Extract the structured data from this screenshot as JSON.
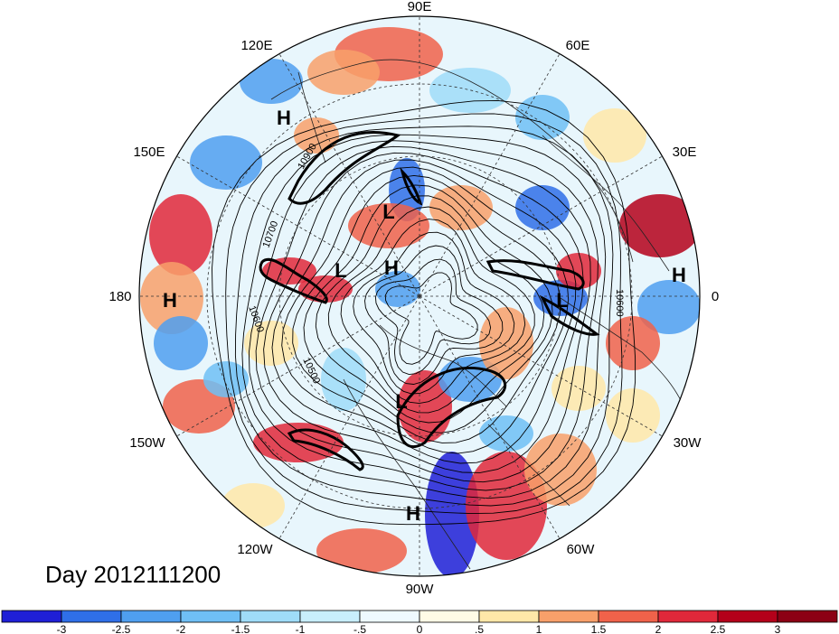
{
  "title": "Day 2012111200",
  "longitude_labels": {
    "lon_90e": "90E",
    "lon_60e": "60E",
    "lon_30e": "30E",
    "lon_0": "0",
    "lon_30w": "30W",
    "lon_60w": "60W",
    "lon_90w": "90W",
    "lon_120w": "120W",
    "lon_150w": "150W",
    "lon_180": "180",
    "lon_150e": "150E",
    "lon_120e": "120E"
  },
  "pressure_centers": {
    "h_120e": "H",
    "l_siberia": "L",
    "l_pacific": "L",
    "h_arctic": "H",
    "h_dateline": "H",
    "l_europe": "L",
    "h_africa": "H",
    "l_america": "L",
    "h_mexico": "H"
  },
  "contour_labels": {
    "c10900a": "10900",
    "c10700": "10700",
    "c10600": "10600",
    "c10500": "10500",
    "c10900b": "10600"
  },
  "colorbar": {
    "ticks": [
      "-3",
      "-2.5",
      "-2",
      "-1.5",
      "-1",
      "-.5",
      "0",
      ".5",
      "1",
      "1.5",
      "2",
      "2.5",
      "3"
    ],
    "colors": [
      "#1f1fd6",
      "#2f6fe8",
      "#4f9ff0",
      "#6fbff5",
      "#9fdcf8",
      "#c8eefc",
      "#eef9ff",
      "#fffbe6",
      "#ffe7a8",
      "#f8a06a",
      "#f0624a",
      "#e0283a",
      "#b4001a",
      "#8c0014"
    ]
  },
  "map": {
    "projection": "north polar stereographic",
    "field": "anomaly (shaded) with geopotential height contours"
  }
}
